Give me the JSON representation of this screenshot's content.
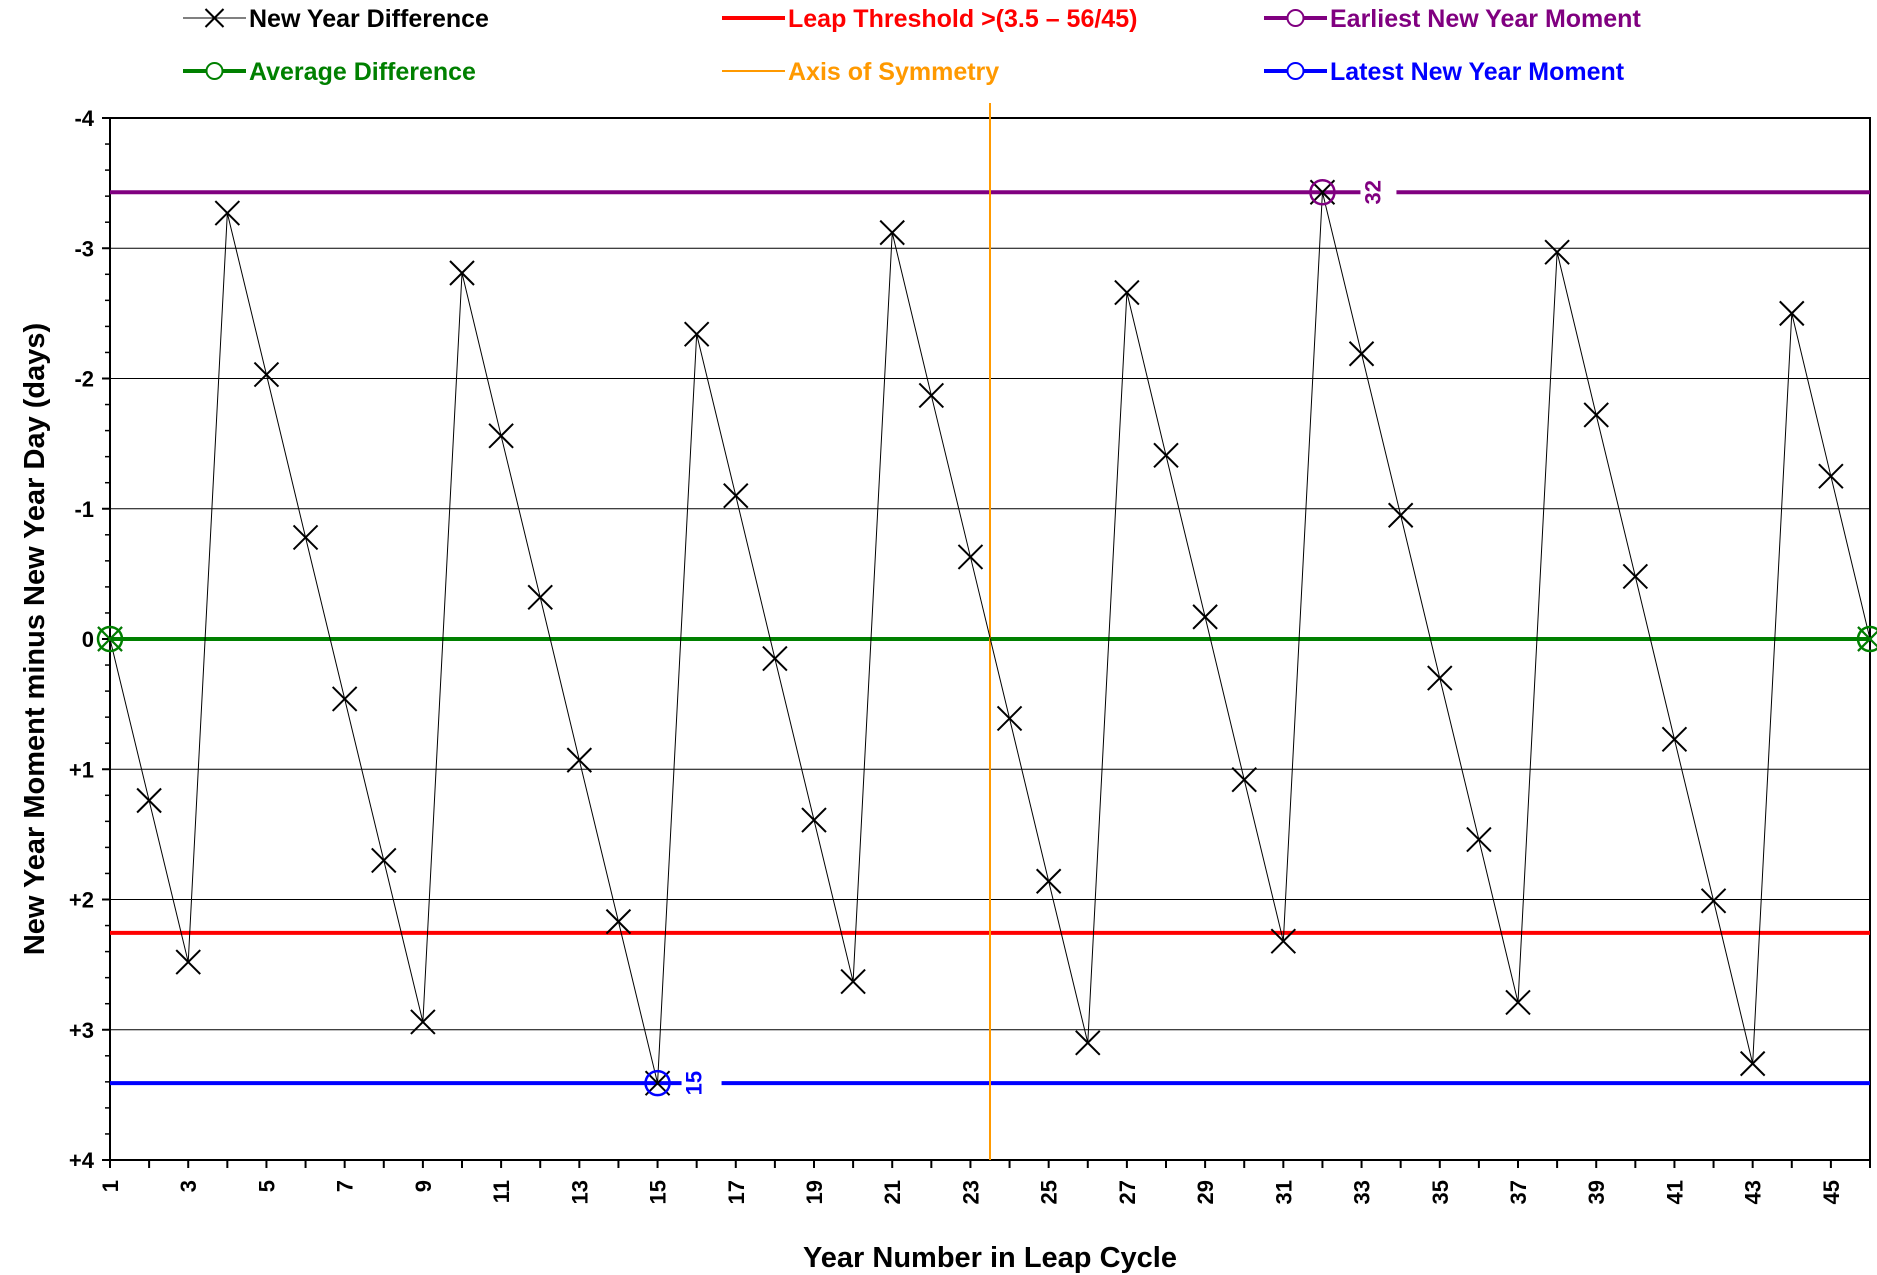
{
  "chart_data": {
    "type": "line",
    "xlabel": "Year Number in Leap Cycle",
    "ylabel": "New Year Moment minus New Year Day (days)",
    "xlim": [
      1,
      46
    ],
    "ylim": [
      -4,
      4
    ],
    "y_inverted": true,
    "x_tick_labels": [
      "1",
      "3",
      "5",
      "7",
      "9",
      "11",
      "13",
      "15",
      "17",
      "19",
      "21",
      "23",
      "25",
      "27",
      "29",
      "31",
      "33",
      "35",
      "37",
      "39",
      "41",
      "43",
      "45"
    ],
    "y_tick_labels": [
      "-4",
      "-3",
      "-2",
      "-1",
      "0",
      "+1",
      "+2",
      "+3",
      "+4"
    ],
    "y_tick_values": [
      -4,
      -3,
      -2,
      -1,
      0,
      1,
      2,
      3,
      4
    ],
    "grid": "horizontal",
    "legend_position": "top",
    "series": [
      {
        "name": "New Year Difference",
        "color": "#000000",
        "marker": "x",
        "x": [
          1,
          2,
          3,
          4,
          5,
          6,
          7,
          8,
          9,
          10,
          11,
          12,
          13,
          14,
          15,
          16,
          17,
          18,
          19,
          20,
          21,
          22,
          23,
          24,
          25,
          26,
          27,
          28,
          29,
          30,
          31,
          32,
          33,
          34,
          35,
          36,
          37,
          38,
          39,
          40,
          41,
          42,
          43,
          44,
          45,
          46
        ],
        "y": [
          0,
          1.24,
          2.48,
          -3.27,
          -2.03,
          -0.78,
          0.46,
          1.7,
          2.94,
          -2.81,
          -1.56,
          -0.32,
          0.93,
          2.17,
          3.41,
          -2.34,
          -1.1,
          0.15,
          1.39,
          2.63,
          -3.12,
          -1.87,
          -0.63,
          0.61,
          1.86,
          3.1,
          -2.66,
          -1.41,
          -0.17,
          1.08,
          2.32,
          -3.43,
          -2.19,
          -0.95,
          0.3,
          1.54,
          2.79,
          -2.97,
          -1.72,
          -0.48,
          0.77,
          2.01,
          3.26,
          -2.5,
          -1.25,
          0
        ]
      },
      {
        "name": "Average Difference",
        "color": "#008000",
        "marker": "circle-x",
        "y": 0,
        "marked_x": [
          1,
          46
        ]
      },
      {
        "name": "Leap Threshold >(3.5 – 56/45)",
        "color": "#ff0000",
        "y": 2.256
      },
      {
        "name": "Axis of Symmetry",
        "color": "#ff9900",
        "x": 23.5
      },
      {
        "name": "Earliest New Year Moment",
        "color": "#800080",
        "marker": "circle",
        "y": -3.43,
        "marked_x": 32,
        "label": "32"
      },
      {
        "name": "Latest New Year Moment",
        "color": "#0000ff",
        "marker": "circle",
        "y": 3.41,
        "marked_x": 15,
        "label": "15"
      }
    ]
  }
}
